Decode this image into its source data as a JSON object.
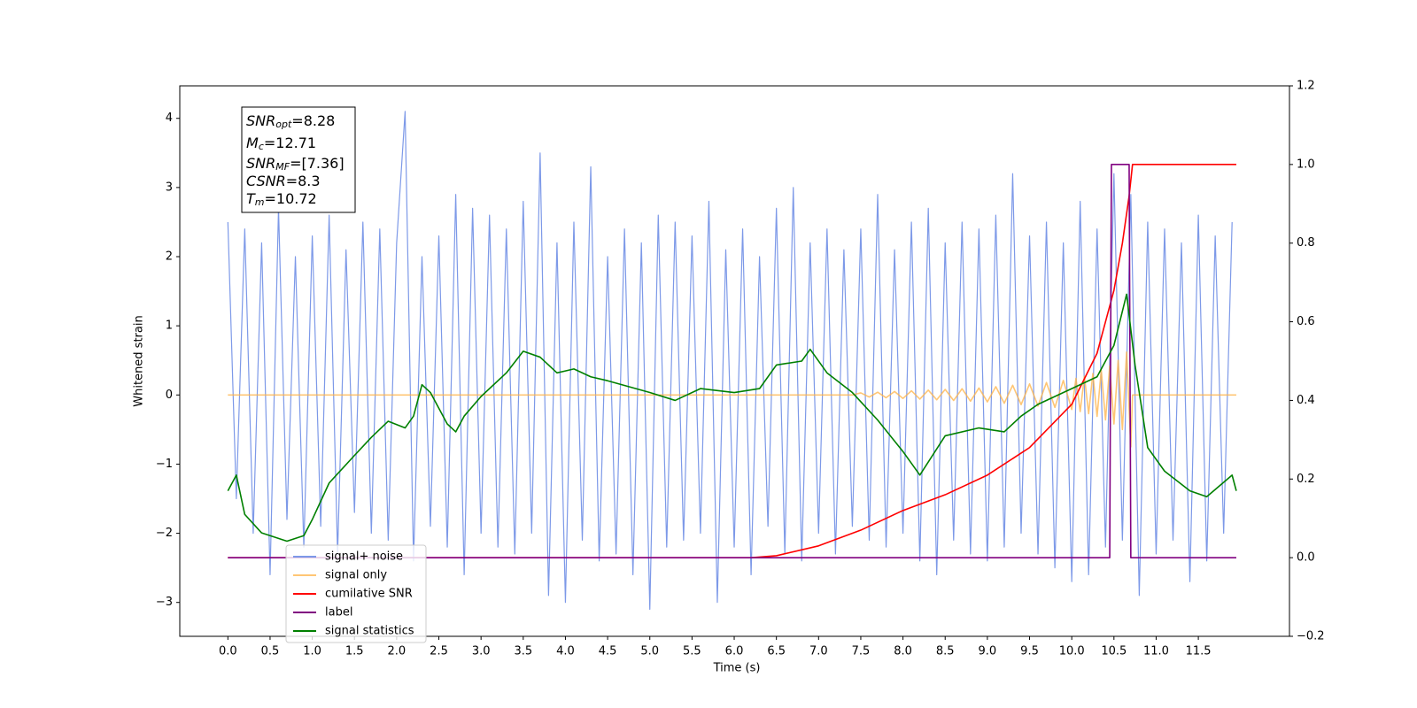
{
  "chart_data": {
    "type": "line",
    "xlabel": "Time (s)",
    "ylabel": "Whitened strain",
    "xlim": [
      -0.57,
      12.58
    ],
    "ylim": [
      -3.49,
      4.47
    ],
    "y2lim": [
      -0.2,
      1.2
    ],
    "xticks": [
      {
        "value": 0,
        "label": "0.0"
      },
      0.5,
      {
        "value": 1,
        "label": "1.0"
      },
      1.5,
      {
        "value": 2,
        "label": "2.0"
      },
      2.5,
      {
        "value": 3,
        "label": "3.0"
      },
      3.5,
      {
        "value": 4,
        "label": "4.0"
      },
      4.5,
      {
        "value": 5,
        "label": "5.0"
      },
      5.5,
      {
        "value": 6,
        "label": "6.0"
      },
      6.5,
      {
        "value": 7,
        "label": "7.0"
      },
      7.5,
      {
        "value": 8,
        "label": "8.0"
      },
      8.5,
      {
        "value": 9,
        "label": "9.0"
      },
      9.5,
      {
        "value": 10,
        "label": "10.0"
      },
      10.5,
      {
        "value": 11,
        "label": "11.0"
      },
      11.5
    ],
    "yticks": [
      {
        "value": -3,
        "label": "−3"
      },
      {
        "value": -2,
        "label": "−2"
      },
      {
        "value": -1,
        "label": "−1"
      },
      0,
      1,
      2,
      3,
      4
    ],
    "y2ticks": [
      {
        "value": -0.2,
        "label": "−0.2"
      },
      {
        "value": 0,
        "label": "0.0"
      },
      0.2,
      0.4,
      0.6,
      0.8,
      {
        "value": 1,
        "label": "1.0"
      },
      1.2
    ],
    "legend": "lower left",
    "annotations": [
      {
        "symbol": "SNR",
        "subscript": "opt",
        "text": "=8.28"
      },
      {
        "symbol": "M",
        "subscript": "c",
        "text": "=12.71"
      },
      {
        "symbol": "SNR",
        "subscript": "MF",
        "text": "=[7.36]"
      },
      {
        "symbol": "CSNR",
        "text": "=8.3"
      },
      {
        "symbol": "T",
        "subscript": "m",
        "text": "=10.72"
      }
    ],
    "series": [
      {
        "name": "signal+ noise",
        "color": "#6f8ee6",
        "opacity": 0.9,
        "x": [
          0.0,
          0.1,
          0.2,
          0.3,
          0.4,
          0.5,
          0.6,
          0.7,
          0.8,
          0.9,
          1.0,
          1.1,
          1.2,
          1.3,
          1.4,
          1.5,
          1.6,
          1.7,
          1.8,
          1.9,
          2.0,
          2.1,
          2.2,
          2.3,
          2.4,
          2.5,
          2.6,
          2.7,
          2.8,
          2.9,
          3.0,
          3.1,
          3.2,
          3.3,
          3.4,
          3.5,
          3.6,
          3.7,
          3.8,
          3.9,
          4.0,
          4.1,
          4.2,
          4.3,
          4.4,
          4.5,
          4.6,
          4.7,
          4.8,
          4.9,
          5.0,
          5.1,
          5.2,
          5.3,
          5.4,
          5.5,
          5.6,
          5.7,
          5.8,
          5.9,
          6.0,
          6.1,
          6.2,
          6.3,
          6.4,
          6.5,
          6.6,
          6.7,
          6.8,
          6.9,
          7.0,
          7.1,
          7.2,
          7.3,
          7.4,
          7.5,
          7.6,
          7.7,
          7.8,
          7.9,
          8.0,
          8.1,
          8.2,
          8.3,
          8.4,
          8.5,
          8.6,
          8.7,
          8.8,
          8.9,
          9.0,
          9.1,
          9.2,
          9.3,
          9.4,
          9.5,
          9.6,
          9.7,
          9.8,
          9.9,
          10.0,
          10.1,
          10.2,
          10.3,
          10.4,
          10.5,
          10.6,
          10.7,
          10.8,
          10.9,
          11.0,
          11.1,
          11.2,
          11.3,
          11.4,
          11.5,
          11.6,
          11.7,
          11.8,
          11.9
        ],
        "values": [
          2.5,
          -1.5,
          2.4,
          -2.0,
          2.2,
          -2.6,
          2.7,
          -1.8,
          2.0,
          -2.2,
          2.3,
          -1.9,
          2.6,
          -2.3,
          2.1,
          -1.7,
          2.5,
          -2.0,
          2.4,
          -2.1,
          2.2,
          4.1,
          -2.4,
          2.0,
          -1.9,
          2.3,
          -2.2,
          2.9,
          -2.6,
          2.7,
          -2.0,
          2.6,
          -2.2,
          2.4,
          -2.3,
          2.8,
          -2.0,
          3.5,
          -2.9,
          2.2,
          -3.0,
          2.5,
          -2.1,
          3.3,
          -2.4,
          2.0,
          -2.3,
          2.4,
          -2.6,
          2.2,
          -3.1,
          2.6,
          -2.2,
          2.5,
          -2.1,
          2.3,
          -2.0,
          2.8,
          -3.0,
          2.1,
          -2.2,
          2.4,
          -2.6,
          2.0,
          -1.9,
          2.7,
          -2.3,
          3.0,
          -2.4,
          2.2,
          -2.0,
          2.4,
          -2.3,
          2.1,
          -1.9,
          2.4,
          -2.1,
          2.9,
          -2.2,
          2.1,
          -2.0,
          2.5,
          -2.4,
          2.7,
          -2.6,
          2.2,
          -2.1,
          2.5,
          -2.3,
          2.4,
          -2.4,
          2.6,
          -2.2,
          3.2,
          -2.0,
          2.3,
          -2.3,
          2.5,
          -2.5,
          2.2,
          -2.7,
          2.8,
          -2.6,
          2.4,
          -2.2,
          3.2,
          -2.1,
          2.9,
          -2.9,
          2.5,
          -2.3,
          2.4,
          -2.1,
          2.2,
          -2.7,
          2.6,
          -2.4,
          2.3,
          -2.0,
          2.5
        ]
      },
      {
        "name": "signal only",
        "color": "#ffb347",
        "opacity": 0.75,
        "x": [
          0,
          7.4,
          7.5,
          7.6,
          7.7,
          7.8,
          7.9,
          8.0,
          8.1,
          8.2,
          8.3,
          8.4,
          8.5,
          8.6,
          8.7,
          8.8,
          8.9,
          9.0,
          9.1,
          9.2,
          9.3,
          9.4,
          9.5,
          9.6,
          9.7,
          9.8,
          9.9,
          10.0,
          10.05,
          10.1,
          10.15,
          10.2,
          10.25,
          10.3,
          10.35,
          10.4,
          10.45,
          10.5,
          10.55,
          10.6,
          10.65,
          10.7,
          10.72,
          11.95
        ],
        "values": [
          0,
          0,
          0.03,
          -0.03,
          0.04,
          -0.04,
          0.05,
          -0.05,
          0.06,
          -0.06,
          0.07,
          -0.07,
          0.08,
          -0.08,
          0.09,
          -0.09,
          0.1,
          -0.1,
          0.12,
          -0.12,
          0.14,
          -0.14,
          0.16,
          -0.16,
          0.18,
          -0.18,
          0.21,
          -0.21,
          0.24,
          -0.24,
          0.27,
          -0.27,
          0.31,
          -0.31,
          0.36,
          -0.36,
          0.42,
          -0.42,
          0.5,
          -0.5,
          0.62,
          -0.75,
          0,
          0
        ]
      },
      {
        "name": "cumilative SNR",
        "color": "#ff0000",
        "axis": "y2",
        "x": [
          0,
          6.2,
          6.5,
          7.0,
          7.5,
          8.0,
          8.5,
          9.0,
          9.5,
          10.0,
          10.3,
          10.5,
          10.6,
          10.68,
          10.72,
          11.95
        ],
        "values": [
          0,
          0,
          0.005,
          0.03,
          0.07,
          0.12,
          0.16,
          0.21,
          0.28,
          0.39,
          0.52,
          0.68,
          0.8,
          0.92,
          1.0,
          1.0
        ]
      },
      {
        "name": "label",
        "color": "#800080",
        "axis": "y2",
        "x": [
          0,
          10.45,
          10.47,
          10.68,
          10.7,
          11.95
        ],
        "values": [
          0,
          0,
          1,
          1,
          0,
          0
        ]
      },
      {
        "name": "signal statistics",
        "color": "#008000",
        "axis": "y2",
        "x": [
          0,
          0.1,
          0.2,
          0.4,
          0.7,
          0.9,
          1.0,
          1.2,
          1.5,
          1.7,
          1.9,
          2.1,
          2.2,
          2.3,
          2.4,
          2.6,
          2.7,
          2.8,
          3.0,
          3.3,
          3.5,
          3.7,
          3.9,
          4.1,
          4.3,
          4.5,
          5.0,
          5.3,
          5.6,
          6.0,
          6.3,
          6.5,
          6.8,
          6.9,
          7.1,
          7.4,
          7.7,
          8.0,
          8.2,
          8.5,
          8.9,
          9.2,
          9.4,
          9.6,
          10.0,
          10.3,
          10.5,
          10.65,
          10.75,
          10.9,
          11.1,
          11.4,
          11.6,
          11.9,
          11.95
        ],
        "values": [
          0.17,
          0.21,
          0.11,
          0.063,
          0.042,
          0.056,
          0.097,
          0.19,
          0.26,
          0.306,
          0.347,
          0.33,
          0.36,
          0.44,
          0.42,
          0.34,
          0.32,
          0.36,
          0.41,
          0.47,
          0.525,
          0.51,
          0.47,
          0.48,
          0.46,
          0.45,
          0.42,
          0.4,
          0.43,
          0.42,
          0.43,
          0.49,
          0.5,
          0.53,
          0.47,
          0.42,
          0.35,
          0.27,
          0.21,
          0.31,
          0.33,
          0.32,
          0.36,
          0.39,
          0.43,
          0.46,
          0.54,
          0.67,
          0.49,
          0.28,
          0.22,
          0.17,
          0.155,
          0.21,
          0.17
        ]
      }
    ]
  }
}
